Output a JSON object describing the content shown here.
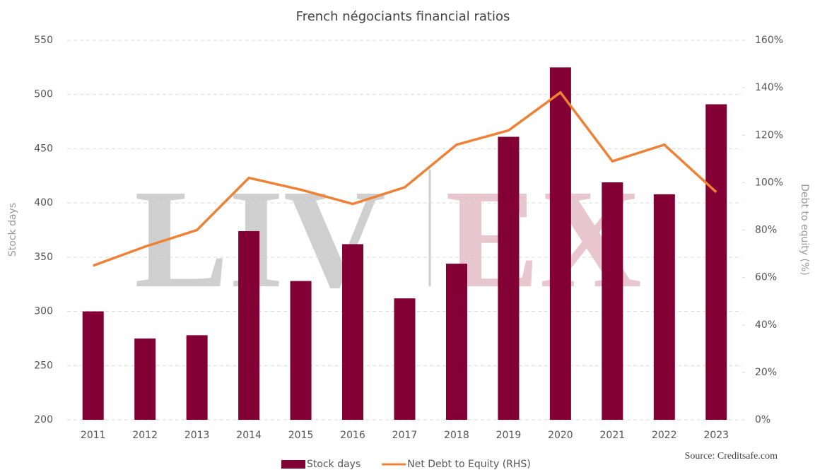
{
  "chart_data": {
    "type": "bar-line",
    "title": "French négociants financial ratios",
    "ylabel": "Stock days",
    "y2label": "Debt to equity (%)",
    "source": "Source: Creditsafe.com",
    "watermark": [
      "LIV",
      "EX"
    ],
    "categories": [
      "2011",
      "2012",
      "2013",
      "2014",
      "2015",
      "2016",
      "2017",
      "2018",
      "2019",
      "2020",
      "2021",
      "2022",
      "2023"
    ],
    "series": [
      {
        "name": "Stock days",
        "type": "bar",
        "color": "#820033",
        "axis": "y",
        "values": [
          300,
          275,
          278,
          374,
          328,
          362,
          312,
          344,
          461,
          525,
          419,
          408,
          491
        ]
      },
      {
        "name": "Net Debt to Equity (RHS)",
        "type": "line",
        "color": "#ee8135",
        "axis": "y2",
        "values": [
          65,
          73,
          80,
          102,
          97,
          91,
          98,
          116,
          122,
          138,
          109,
          116,
          96
        ]
      }
    ],
    "ylim": [
      200,
      550
    ],
    "yticks": [
      200,
      250,
      300,
      350,
      400,
      450,
      500,
      550
    ],
    "y2lim": [
      0,
      160
    ],
    "y2ticks": [
      {
        "value": 0,
        "label": "0%"
      },
      {
        "value": 20,
        "label": "20%"
      },
      {
        "value": 40,
        "label": "40%"
      },
      {
        "value": 60,
        "label": "60%"
      },
      {
        "value": 80,
        "label": "80%"
      },
      {
        "value": 100,
        "label": "100%"
      },
      {
        "value": 120,
        "label": "120%"
      },
      {
        "value": 140,
        "label": "140%"
      },
      {
        "value": 160,
        "label": "160%"
      }
    ],
    "grid": true,
    "legend": "bottom"
  }
}
